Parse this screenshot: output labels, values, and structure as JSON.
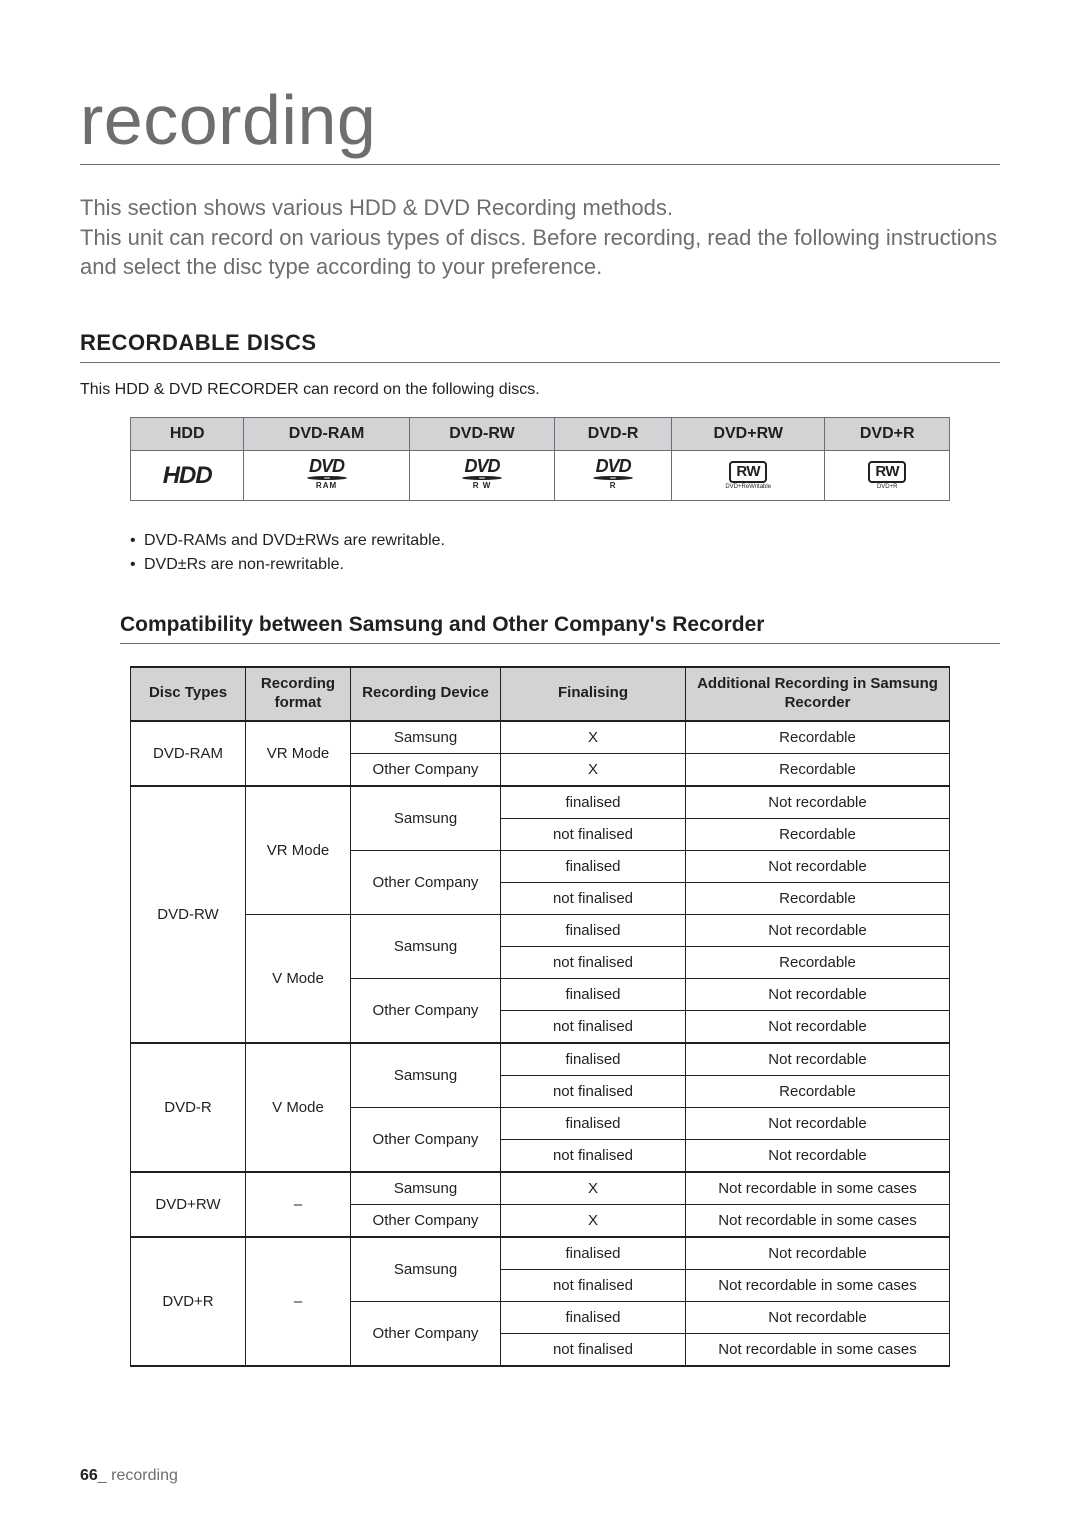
{
  "title": "recording",
  "intro": "This section shows various HDD & DVD Recording methods.\nThis unit can record on various types of discs. Before recording, read the following instructions and select the disc type according to your preference.",
  "section_heading": "RECORDABLE DISCS",
  "section_subtext": "This HDD & DVD RECORDER can record on the following discs.",
  "disc_headers": [
    "HDD",
    "DVD-RAM",
    "DVD-RW",
    "DVD-R",
    "DVD+RW",
    "DVD+R"
  ],
  "disc_logos": {
    "hdd": "HDD",
    "dvd_text": "DVD",
    "ram": "RAM",
    "rw": "R W",
    "r": "R",
    "rw_box": "RW",
    "plus_rw_sub": "DVD+ReWritable",
    "plus_r_sub": "DVD+R"
  },
  "bullets": [
    "DVD-RAMs and DVD±RWs are rewritable.",
    "DVD±Rs are non-rewritable."
  ],
  "compat_heading": "Compatibility between Samsung and Other Company's Recorder",
  "compat_headers": [
    "Disc Types",
    "Recording format",
    "Recording Device",
    "Finalising",
    "Additional Recording in Samsung Recorder"
  ],
  "compat_rows": [
    {
      "disc": "DVD-RAM",
      "fmt": "VR Mode",
      "dev": "Samsung",
      "fin": "X",
      "add": "Recordable"
    },
    {
      "disc": "",
      "fmt": "",
      "dev": "Other Company",
      "fin": "X",
      "add": "Recordable"
    },
    {
      "disc": "DVD-RW",
      "fmt": "VR Mode",
      "dev": "Samsung",
      "fin": "finalised",
      "add": "Not recordable"
    },
    {
      "disc": "",
      "fmt": "",
      "dev": "",
      "fin": "not finalised",
      "add": "Recordable"
    },
    {
      "disc": "",
      "fmt": "",
      "dev": "Other Company",
      "fin": "finalised",
      "add": "Not recordable"
    },
    {
      "disc": "",
      "fmt": "",
      "dev": "",
      "fin": "not finalised",
      "add": "Recordable"
    },
    {
      "disc": "",
      "fmt": "V Mode",
      "dev": "Samsung",
      "fin": "finalised",
      "add": "Not recordable"
    },
    {
      "disc": "",
      "fmt": "",
      "dev": "",
      "fin": "not finalised",
      "add": "Recordable"
    },
    {
      "disc": "",
      "fmt": "",
      "dev": "Other Company",
      "fin": "finalised",
      "add": "Not recordable"
    },
    {
      "disc": "",
      "fmt": "",
      "dev": "",
      "fin": "not finalised",
      "add": "Not recordable"
    },
    {
      "disc": "DVD-R",
      "fmt": "V Mode",
      "dev": "Samsung",
      "fin": "finalised",
      "add": "Not recordable"
    },
    {
      "disc": "",
      "fmt": "",
      "dev": "",
      "fin": "not finalised",
      "add": "Recordable"
    },
    {
      "disc": "",
      "fmt": "",
      "dev": "Other Company",
      "fin": "finalised",
      "add": "Not recordable"
    },
    {
      "disc": "",
      "fmt": "",
      "dev": "",
      "fin": "not finalised",
      "add": "Not recordable"
    },
    {
      "disc": "DVD+RW",
      "fmt": "–",
      "dev": "Samsung",
      "fin": "X",
      "add": "Not recordable in some cases"
    },
    {
      "disc": "",
      "fmt": "",
      "dev": "Other Company",
      "fin": "X",
      "add": "Not recordable in some cases"
    },
    {
      "disc": "DVD+R",
      "fmt": "–",
      "dev": "Samsung",
      "fin": "finalised",
      "add": "Not recordable"
    },
    {
      "disc": "",
      "fmt": "",
      "dev": "",
      "fin": "not finalised",
      "add": "Not recordable in some cases"
    },
    {
      "disc": "",
      "fmt": "",
      "dev": "Other Company",
      "fin": "finalised",
      "add": "Not recordable"
    },
    {
      "disc": "",
      "fmt": "",
      "dev": "",
      "fin": "not finalised",
      "add": "Not recordable in some cases"
    }
  ],
  "footer": {
    "page": "66",
    "sep": "_",
    "label": "recording"
  }
}
